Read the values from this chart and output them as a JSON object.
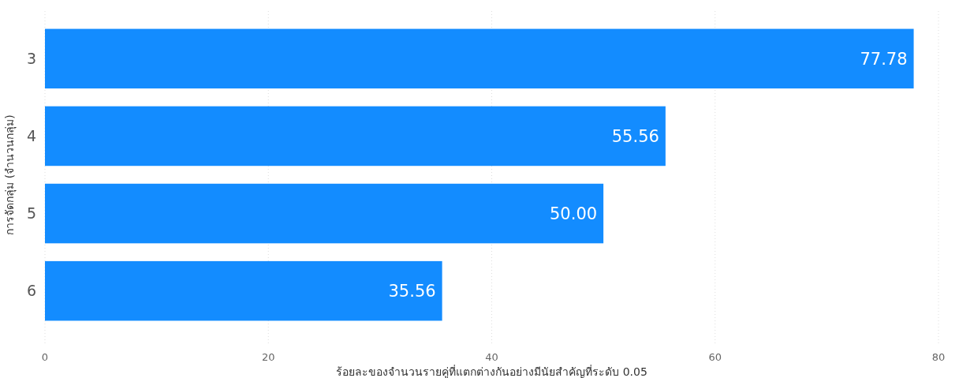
{
  "chart_data": {
    "type": "bar",
    "orientation": "horizontal",
    "categories": [
      "3",
      "4",
      "5",
      "6"
    ],
    "values": [
      77.78,
      55.56,
      50.0,
      35.56
    ],
    "value_labels": [
      "77.78",
      "55.56",
      "50.00",
      "35.56"
    ],
    "color": "#138cff",
    "xlim": [
      0,
      80
    ],
    "xticks": [
      0,
      20,
      40,
      60,
      80
    ],
    "grid": "x",
    "xlabel": "ร้อยละของจำนวนรายคู่ที่แตกต่างกันอย่างมีนัยสำคัญที่ระดับ 0.05",
    "ylabel": "การจัดกลุ่ม (จำนวนกลุ่ม)"
  }
}
